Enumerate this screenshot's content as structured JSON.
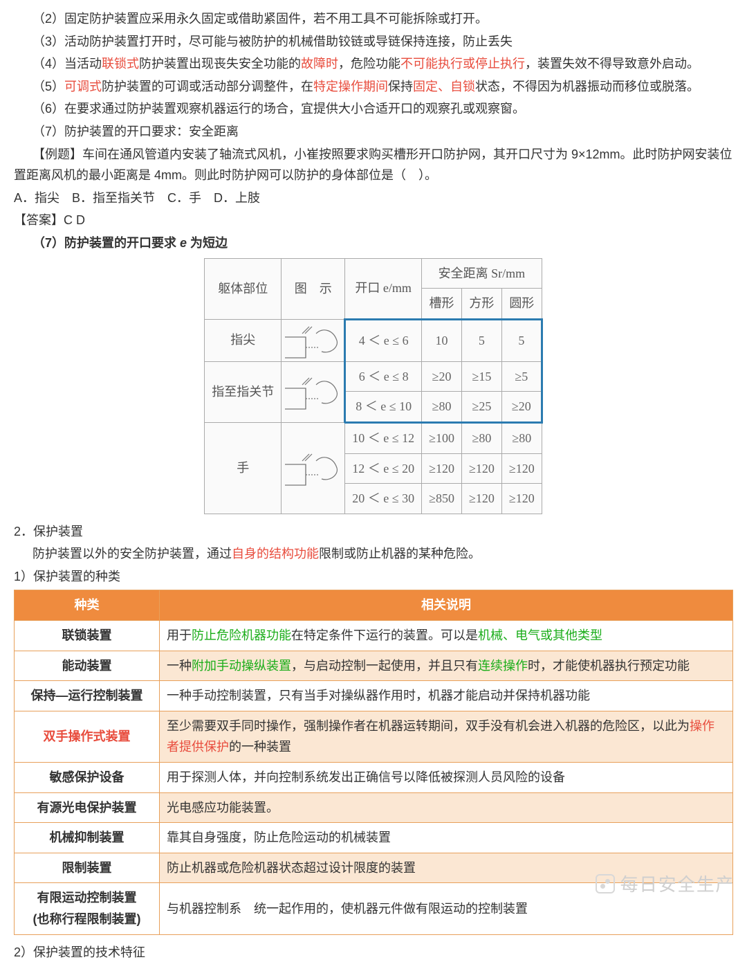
{
  "paragraphs": {
    "p2": "（2）固定防护装置应采用永久固定或借助紧固件，若不用工具不可能拆除或打开。",
    "p3": "（3）活动防护装置打开时，尽可能与被防护的机械借助铰链或导链保持连接，防止丢失",
    "p4_a": "（4）当活动",
    "p4_b": "联锁式",
    "p4_c": "防护装置出现丧失安全功能的",
    "p4_d": "故障时",
    "p4_e": "，危险功能",
    "p4_f": "不可能执行或停止执行",
    "p4_g": "，装置失效不得导致意外启动。",
    "p5_a": "（5）",
    "p5_b": "可调式",
    "p5_c": "防护装置的可调或活动部分调整件，在",
    "p5_d": "特定操作期间",
    "p5_e": "保持",
    "p5_f": "固定、自锁",
    "p5_g": "状态，不得因为机器振动而移位或脱落。",
    "p6": "（6）在要求通过防护装置观察机器运行的场合，宜提供大小合适开口的观察孔或观察窗。",
    "p7": "（7）防护装置的开口要求：安全距离",
    "ex_q": "【例题】车间在通风管道内安装了轴流式风机，小崔按照要求购买槽形开口防护网，其开口尺寸为 9×12mm。此时防护网安装位置距离风机的最小距离是 4mm。则此时防护网可以防护的身体部位是（　）。",
    "ex_opts": "A．指尖　B．指至指关节　C．手　D．上肢",
    "ex_ans": "【答案】C D",
    "p7b_a": "（7）防护装置的开口要求 ",
    "p7b_b": "e",
    "p7b_c": " 为短边",
    "s2": "2．保护装置",
    "s2_desc_a": "防护装置以外的安全防护装置，通过",
    "s2_desc_b": "自身的结构功能",
    "s2_desc_c": "限制或防止机器的某种危险。",
    "s2_1": "1）保护装置的种类",
    "s2_2": "2）保护装置的技术特征"
  },
  "safety_table": {
    "hdr_body": "躯体部位",
    "hdr_fig": "图　示",
    "hdr_open": "开口 e/mm",
    "hdr_safe": "安全距离 Sr/mm",
    "hdr_slot": "槽形",
    "hdr_square": "方形",
    "hdr_round": "圆形",
    "rows": [
      {
        "body": "指尖",
        "ranges": [
          "4 ＜ e ≤ 6"
        ],
        "vals": [
          [
            "10",
            "5",
            "5"
          ]
        ]
      },
      {
        "body": "指至指关节",
        "ranges": [
          "6 ＜ e ≤ 8",
          "8 ＜ e ≤ 10"
        ],
        "vals": [
          [
            "≥20",
            "≥15",
            "≥5"
          ],
          [
            "≥80",
            "≥25",
            "≥20"
          ]
        ]
      },
      {
        "body": "手",
        "ranges": [
          "10 ＜ e ≤ 12",
          "12 ＜ e ≤ 20",
          "20 ＜ e ≤ 30"
        ],
        "vals": [
          [
            "≥100",
            "≥80",
            "≥80"
          ],
          [
            "≥120",
            "≥120",
            "≥120"
          ],
          [
            "≥850",
            "≥120",
            "≥120"
          ]
        ]
      }
    ],
    "highlight_range_rows": [
      0,
      1,
      2
    ],
    "colors": {
      "border": "#aaaaaa",
      "highlight": "#2b7bb0",
      "text": "#666666",
      "bg": "#fafafa"
    }
  },
  "types_table": {
    "columns": [
      "种类",
      "相关说明"
    ],
    "rows": [
      {
        "type_html": "<b>联锁装置</b>",
        "desc_html": "用于<span class='green'>防止危险机器功能</span>在特定条件下运行的装置。可以是<span class='green'>机械、电气或其他类型</span>",
        "alt": false
      },
      {
        "type_html": "<b>能动装置</b>",
        "desc_html": "一种<span class='green'>附加手动操纵装置</span>，与启动控制一起使用，并且只有<span class='green'>连续操作</span>时，才能使机器执行预定功能",
        "alt": true
      },
      {
        "type_html": "<b>保持—运行控制装置</b>",
        "desc_html": "一种手动控制装置，只有当手对操纵器作用时，机器才能启动并保持机器功能",
        "alt": false
      },
      {
        "type_html": "<span class='red'>双手操作式装置</span>",
        "desc_html": "至少需要双手同时操作，强制操作者在机器运转期间，双手没有机会进入机器的危险区，以此为<span class='red'>操作者提供保护</span>的一种装置",
        "alt": true
      },
      {
        "type_html": "敏感保护设备",
        "desc_html": "用于探测人体，并向控制系统发出正确信号以降低被探测人员风险的设备",
        "alt": false
      },
      {
        "type_html": "有源光电保护装置",
        "desc_html": "光电感应功能装置。",
        "alt": true
      },
      {
        "type_html": "机械抑制装置",
        "desc_html": "靠其自身强度，防止危险运动的机械装置",
        "alt": false
      },
      {
        "type_html": "限制装置",
        "desc_html": "防止机器或危险机器状态超过设计限度的装置",
        "alt": true
      },
      {
        "type_html": "有限运动控制装置<br>(也称行程限制装置)",
        "desc_html": "与机器控制系　统一起作用的，使机器元件做有限运动的控制装置",
        "alt": false
      }
    ],
    "colors": {
      "header_bg": "#ef8b3e",
      "header_fg": "#ffffff",
      "border": "#e8a05a",
      "alt_bg": "#fbe7d3",
      "bg": "#ffffff"
    }
  },
  "watermark": "每日安全生产"
}
